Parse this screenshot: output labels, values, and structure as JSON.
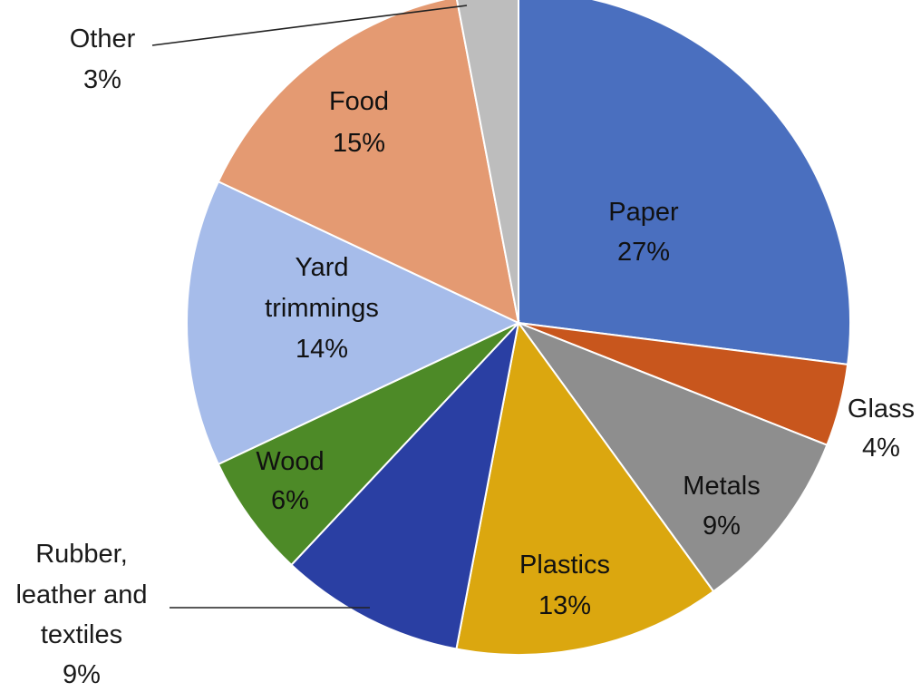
{
  "chart_data": {
    "type": "pie",
    "title": "",
    "start_angle_deg": 0,
    "direction": "clockwise",
    "slices": [
      {
        "name": "Paper",
        "value": 27,
        "label": "27%",
        "color": "#4a6fbf",
        "text_color": "#111111"
      },
      {
        "name": "Glass",
        "value": 4,
        "label": "4%",
        "color": "#c8561d",
        "text_color": "#111111"
      },
      {
        "name": "Metals",
        "value": 9,
        "label": "9%",
        "color": "#8e8e8e",
        "text_color": "#111111"
      },
      {
        "name": "Plastics",
        "value": 13,
        "label": "13%",
        "color": "#dba70f",
        "text_color": "#111111"
      },
      {
        "name": "Rubber, leather and textiles",
        "value": 9,
        "label": "9%",
        "color": "#2a3fa3",
        "text_color": "#111111"
      },
      {
        "name": "Wood",
        "value": 6,
        "label": "6%",
        "color": "#4d8a27",
        "text_color": "#111111"
      },
      {
        "name": "Yard trimmings",
        "value": 14,
        "label": "14%",
        "color": "#a6bcea",
        "text_color": "#111111"
      },
      {
        "name": "Food",
        "value": 15,
        "label": "15%",
        "color": "#e49a72",
        "text_color": "#111111"
      },
      {
        "name": "Other",
        "value": 3,
        "label": "3%",
        "color": "#bdbdbd",
        "text_color": "#111111"
      }
    ]
  },
  "labels": {
    "paper": {
      "name": "Paper",
      "pct": "27%"
    },
    "glass": {
      "name": "Glass",
      "pct": "4%"
    },
    "metals": {
      "name": "Metals",
      "pct": "9%"
    },
    "plastics": {
      "name": "Plastics",
      "pct": "13%"
    },
    "rubber": {
      "line1": "Rubber,",
      "line2": "leather and",
      "line3": "textiles",
      "pct": "9%"
    },
    "wood": {
      "name": "Wood",
      "pct": "6%"
    },
    "yard": {
      "line1": "Yard",
      "line2": "trimmings",
      "pct": "14%"
    },
    "food": {
      "name": "Food",
      "pct": "15%"
    },
    "other": {
      "name": "Other",
      "pct": "3%"
    }
  }
}
